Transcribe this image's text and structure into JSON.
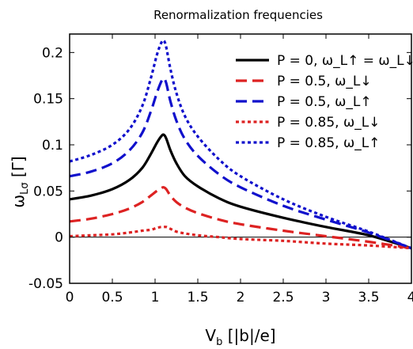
{
  "chart_data": {
    "type": "line",
    "title": "Renormalization frequencies",
    "xlabel": "V_b [|b|/e]",
    "ylabel": "ω_Lσ [Γ]",
    "xlim": [
      0,
      4
    ],
    "ylim": [
      -0.05,
      0.22
    ],
    "xticks": [
      0,
      0.5,
      1,
      1.5,
      2,
      2.5,
      3,
      3.5,
      4
    ],
    "xtick_labels": [
      "0",
      "0.5",
      "1",
      "1.5",
      "2",
      "2.5",
      "3",
      "3.5",
      "4"
    ],
    "yticks": [
      -0.05,
      0,
      0.05,
      0.1,
      0.15,
      0.2
    ],
    "ytick_labels": [
      "-0.05",
      "0",
      "0.05",
      "0.1",
      "0.15",
      "0.2"
    ],
    "grid": false,
    "legend_position": "top-right",
    "zero_line": true,
    "x": [
      0,
      0.25,
      0.5,
      0.7,
      0.85,
      0.95,
      1.02,
      1.07,
      1.1,
      1.13,
      1.18,
      1.25,
      1.35,
      1.5,
      1.75,
      2.0,
      2.5,
      3.0,
      3.5,
      4.0
    ],
    "series": [
      {
        "name": "P = 0, ω_L↑ = ω_L↓",
        "color": "#000000",
        "dash": "solid",
        "values": [
          0.041,
          0.045,
          0.052,
          0.062,
          0.075,
          0.09,
          0.102,
          0.109,
          0.111,
          0.107,
          0.094,
          0.08,
          0.066,
          0.055,
          0.042,
          0.033,
          0.021,
          0.011,
          0.002,
          -0.012
        ]
      },
      {
        "name": "P = 0.5, ω_L↓",
        "color": "#dd2222",
        "dash": "dashed",
        "values": [
          0.017,
          0.02,
          0.025,
          0.031,
          0.038,
          0.045,
          0.05,
          0.053,
          0.054,
          0.052,
          0.045,
          0.038,
          0.032,
          0.026,
          0.019,
          0.014,
          0.007,
          0.001,
          -0.005,
          -0.012
        ]
      },
      {
        "name": "P = 0.5, ω_L↑",
        "color": "#1010cc",
        "dash": "dashed",
        "values": [
          0.066,
          0.071,
          0.08,
          0.094,
          0.113,
          0.136,
          0.156,
          0.168,
          0.172,
          0.167,
          0.147,
          0.126,
          0.106,
          0.088,
          0.068,
          0.054,
          0.034,
          0.019,
          0.005,
          -0.012
        ]
      },
      {
        "name": "P = 0.85, ω_L↓",
        "color": "#dd2222",
        "dash": "dotted",
        "values": [
          0.001,
          0.002,
          0.003,
          0.005,
          0.007,
          0.008,
          0.01,
          0.011,
          0.011,
          0.011,
          0.009,
          0.006,
          0.004,
          0.002,
          0.0,
          -0.002,
          -0.004,
          -0.007,
          -0.009,
          -0.012
        ]
      },
      {
        "name": "P = 0.85, ω_L↑",
        "color": "#1010cc",
        "dash": "dotted",
        "values": [
          0.082,
          0.089,
          0.1,
          0.117,
          0.142,
          0.172,
          0.197,
          0.21,
          0.213,
          0.206,
          0.182,
          0.156,
          0.131,
          0.109,
          0.084,
          0.066,
          0.041,
          0.022,
          0.006,
          -0.012
        ]
      }
    ]
  }
}
